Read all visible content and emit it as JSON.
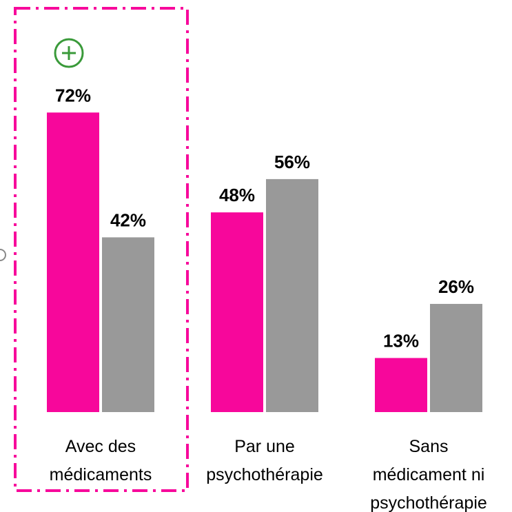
{
  "chart_data": {
    "type": "bar",
    "categories": [
      [
        "Avec des",
        "médicaments"
      ],
      [
        "Par une",
        "psychothérapie"
      ],
      [
        "Sans",
        "médicament ni",
        "psychothérapie"
      ]
    ],
    "series": [
      {
        "color": "#f7079b",
        "values": [
          72,
          48,
          13
        ],
        "value_labels": [
          "72%",
          "48%",
          "13%"
        ]
      },
      {
        "color": "#999999",
        "values": [
          42,
          56,
          26
        ],
        "value_labels": [
          "42%",
          "56%",
          "26%"
        ]
      }
    ],
    "ylim": [
      0,
      80
    ]
  }
}
